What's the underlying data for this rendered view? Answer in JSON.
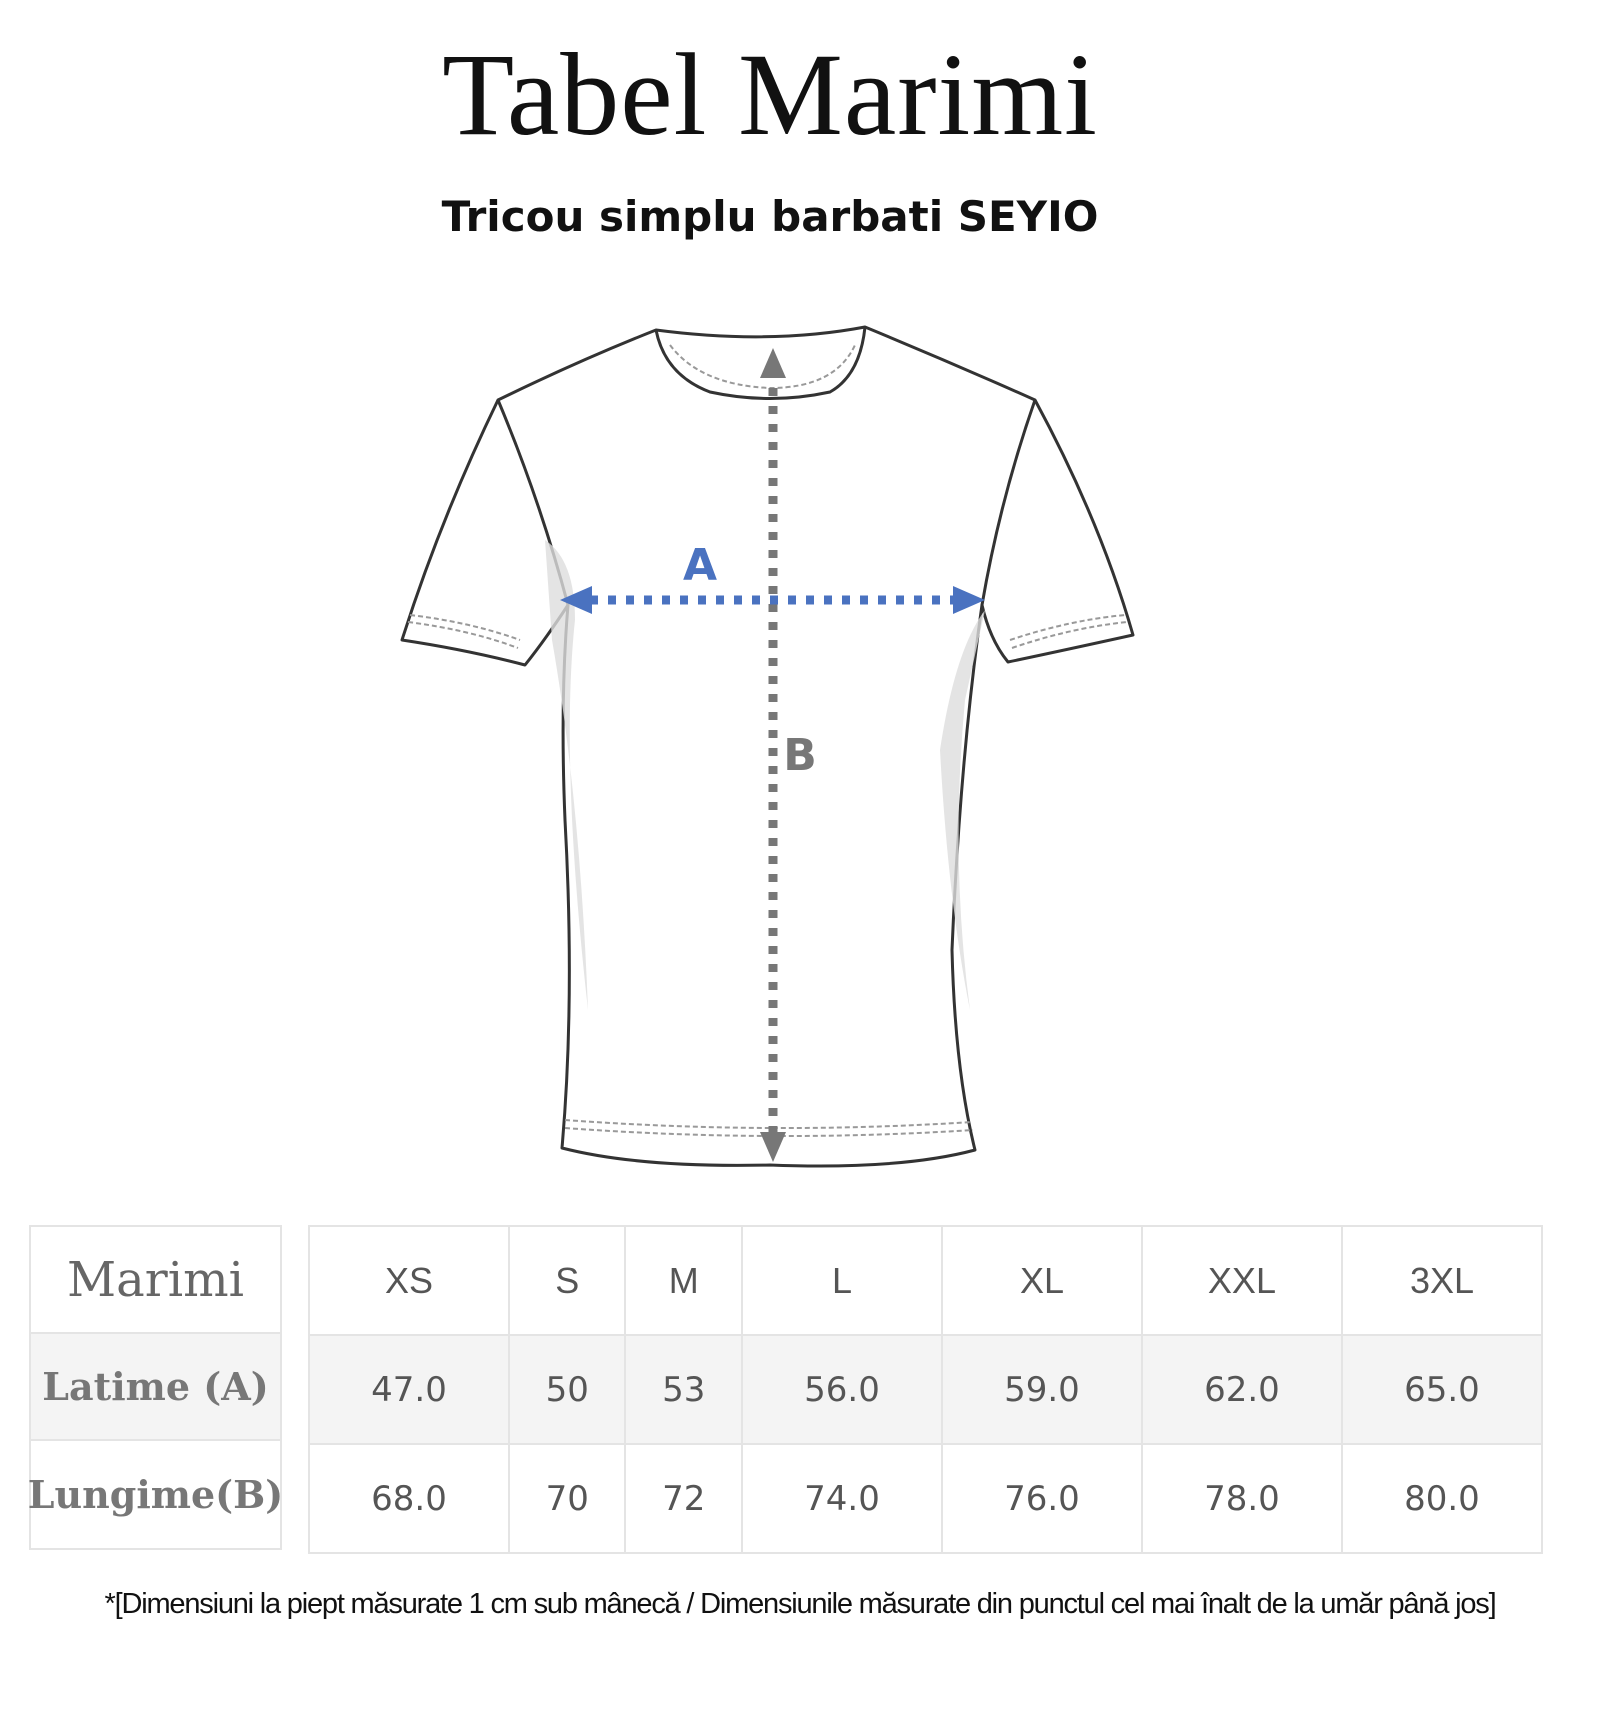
{
  "title": "Tabel Marimi",
  "subtitle": "Tricou simplu barbati SEYIO",
  "diagram": {
    "label_a": "A",
    "label_b": "B",
    "color_a": "#4a72c0",
    "color_b": "#777777"
  },
  "table": {
    "row_labels": [
      "Marimi",
      "Latime (A)",
      "Lungime(B)"
    ],
    "sizes": [
      "XS",
      "S",
      "M",
      "L",
      "XL",
      "XXL",
      "3XL"
    ],
    "latime": [
      "47.0",
      "50",
      "53",
      "56.0",
      "59.0",
      "62.0",
      "65.0"
    ],
    "lungime": [
      "68.0",
      "70",
      "72",
      "74.0",
      "76.0",
      "78.0",
      "80.0"
    ]
  },
  "footnote": "*[Dimensiuni la piept măsurate 1 cm sub mânecă / Dimensiunile măsurate din punctul cel mai înalt de la umăr până jos]"
}
